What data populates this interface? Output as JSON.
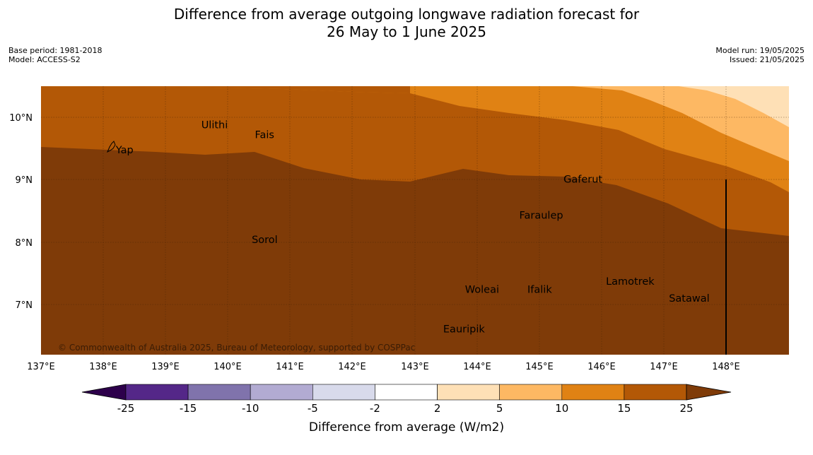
{
  "title": {
    "line1": "Difference from average outgoing longwave radiation forecast for",
    "line2": "26 May to 1 June 2025"
  },
  "meta": {
    "base_period": "Base period: 1981-2018",
    "model": "Model: ACCESS-S2",
    "model_run": "Model run: 19/05/2025",
    "issued": "Issued: 21/05/2025"
  },
  "map": {
    "lon_range": [
      137,
      149
    ],
    "lat_range": [
      6.2,
      10.5
    ],
    "lon_ticks": [
      "137°E",
      "138°E",
      "139°E",
      "140°E",
      "141°E",
      "142°E",
      "143°E",
      "144°E",
      "145°E",
      "146°E",
      "147°E",
      "148°E"
    ],
    "lat_ticks": [
      "10°N",
      "9°N",
      "8°N",
      "7°N"
    ],
    "places": [
      {
        "name": "Yap",
        "lon": 138.2,
        "lat": 9.48
      },
      {
        "name": "Ulithi",
        "lon": 139.57,
        "lat": 9.88
      },
      {
        "name": "Fais",
        "lon": 140.43,
        "lat": 9.72
      },
      {
        "name": "Gaferut",
        "lon": 145.38,
        "lat": 9.01
      },
      {
        "name": "Faraulep",
        "lon": 144.67,
        "lat": 8.43
      },
      {
        "name": "Sorol",
        "lon": 140.38,
        "lat": 8.04
      },
      {
        "name": "Woleai",
        "lon": 143.8,
        "lat": 7.24
      },
      {
        "name": "Ifalik",
        "lon": 144.8,
        "lat": 7.24
      },
      {
        "name": "Lamotrek",
        "lon": 146.06,
        "lat": 7.37
      },
      {
        "name": "Satawal",
        "lon": 147.07,
        "lat": 7.1
      },
      {
        "name": "Eauripik",
        "lon": 143.45,
        "lat": 6.61
      }
    ],
    "copyright": "© Commonwealth of Australia 2025, Bureau of Meteorology, supported by COSPPac"
  },
  "colorbar": {
    "ticks": [
      "-25",
      "-15",
      "-10",
      "-5",
      "-2",
      "2",
      "5",
      "10",
      "15",
      "25"
    ],
    "colors": {
      "below_min": "#2d004b",
      "bins": [
        "#542788",
        "#8073ac",
        "#b2abd2",
        "#d8daeb",
        "#ffffff",
        "#fee0b6",
        "#fdb863",
        "#e08214",
        "#b35806"
      ],
      "above_max": "#7f3b08"
    },
    "label": "Difference from average (W/m2)"
  }
}
